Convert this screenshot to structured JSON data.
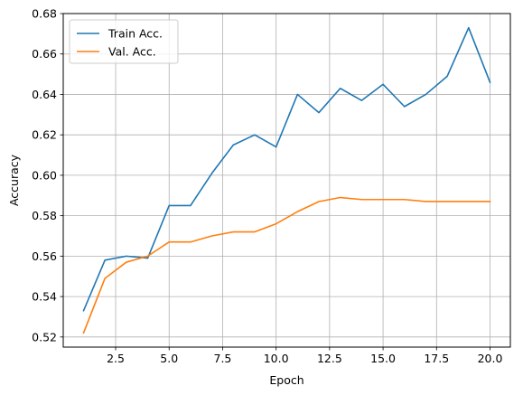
{
  "chart_data": {
    "type": "line",
    "title": "",
    "xlabel": "Epoch",
    "ylabel": "Accuracy",
    "xlim": [
      0.05,
      20.95
    ],
    "ylim": [
      0.515,
      0.68
    ],
    "xticks": [
      2.5,
      5.0,
      7.5,
      10.0,
      12.5,
      15.0,
      17.5,
      20.0
    ],
    "xtick_labels": [
      "2.5",
      "5.0",
      "7.5",
      "10.0",
      "12.5",
      "15.0",
      "17.5",
      "20.0"
    ],
    "yticks": [
      0.52,
      0.54,
      0.56,
      0.58,
      0.6,
      0.62,
      0.64,
      0.66,
      0.68
    ],
    "ytick_labels": [
      "0.52",
      "0.54",
      "0.56",
      "0.58",
      "0.60",
      "0.62",
      "0.64",
      "0.66",
      "0.68"
    ],
    "grid": true,
    "legend_position": "top-left",
    "x": [
      1,
      2,
      3,
      4,
      5,
      6,
      7,
      8,
      9,
      10,
      11,
      12,
      13,
      14,
      15,
      16,
      17,
      18,
      19,
      20
    ],
    "series": [
      {
        "name": "Train Acc.",
        "color": "#1f77b4",
        "values": [
          0.533,
          0.558,
          0.56,
          0.559,
          0.585,
          0.585,
          0.601,
          0.615,
          0.62,
          0.614,
          0.64,
          0.631,
          0.643,
          0.637,
          0.645,
          0.634,
          0.64,
          0.649,
          0.673,
          0.646
        ]
      },
      {
        "name": "Val. Acc.",
        "color": "#ff7f0e",
        "values": [
          0.522,
          0.549,
          0.557,
          0.56,
          0.567,
          0.567,
          0.57,
          0.572,
          0.572,
          0.576,
          0.582,
          0.587,
          0.589,
          0.588,
          0.588,
          0.588,
          0.587,
          0.587,
          0.587,
          0.587
        ]
      }
    ]
  }
}
